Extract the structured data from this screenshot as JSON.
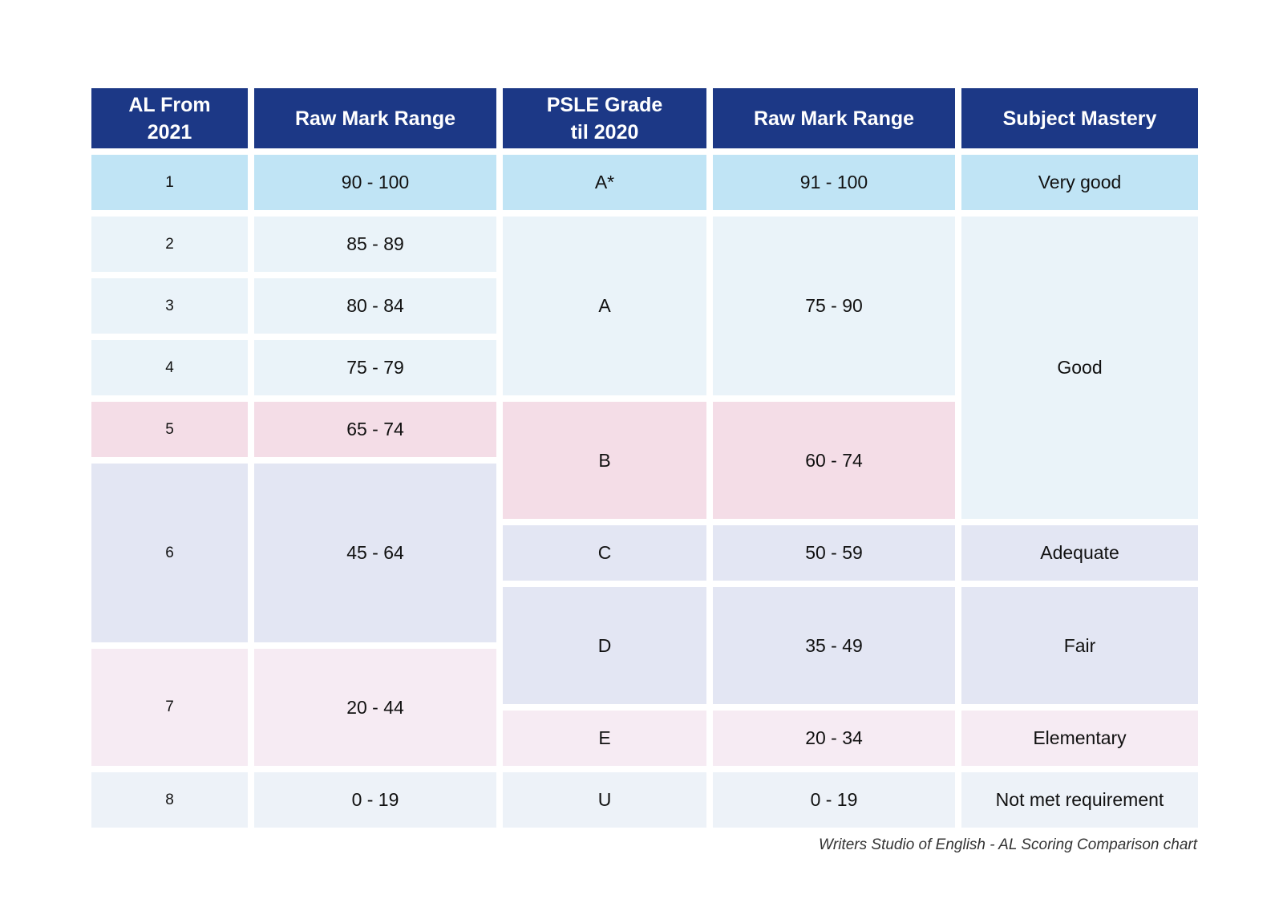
{
  "chart_data": {
    "type": "table",
    "columns": [
      "AL From 2021",
      "Raw Mark Range",
      "PSLE Grade til 2020",
      "Raw Mark Range",
      "Subject Mastery"
    ],
    "al_rows": [
      {
        "al": "1",
        "range": "90 - 100"
      },
      {
        "al": "2",
        "range": "85 - 89"
      },
      {
        "al": "3",
        "range": "80 - 84"
      },
      {
        "al": "4",
        "range": "75 - 79"
      },
      {
        "al": "5",
        "range": "65 - 74"
      },
      {
        "al": "6",
        "range": "45 - 64"
      },
      {
        "al": "7",
        "range": "20 - 44"
      },
      {
        "al": "8",
        "range": "0 - 19"
      }
    ],
    "grade_rows": [
      {
        "grade": "A*",
        "range": "91 - 100"
      },
      {
        "grade": "A",
        "range": "75 - 90"
      },
      {
        "grade": "B",
        "range": "60 - 74"
      },
      {
        "grade": "C",
        "range": "50 - 59"
      },
      {
        "grade": "D",
        "range": "35 - 49"
      },
      {
        "grade": "E",
        "range": "20 - 34"
      },
      {
        "grade": "U",
        "range": "0 - 19"
      }
    ],
    "mastery_rows": [
      "Very good",
      "Good",
      "Adequate",
      "Fair",
      "Elementary",
      "Not met requirement"
    ],
    "colors": {
      "header": "#1c3886",
      "sky": "#c0e4f5",
      "ice": "#eaf3f9",
      "pink": "#f4dde7",
      "lavender": "#e3e6f3",
      "blush": "#f6ebf3",
      "pale": "#edf2f8"
    }
  },
  "caption": "Writers Studio of English - AL Scoring Comparison chart"
}
